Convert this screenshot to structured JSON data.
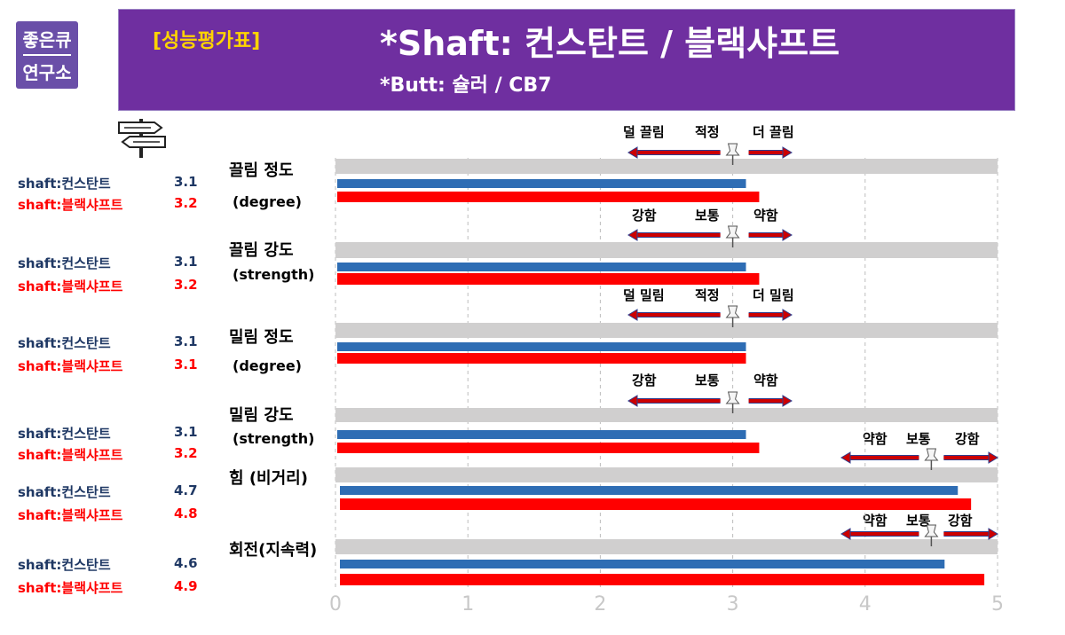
{
  "logo": {
    "line1": "좋은큐",
    "line2": "연구소"
  },
  "header": {
    "eval_label": "[성능평가표]",
    "shaft_line": "*Shaft: 컨스탄트 / 블랙샤프트",
    "butt_line": "*Butt: 슐러 / CB7"
  },
  "icons": {
    "signpost": "signpost-icon",
    "pin": "push-pin-icon",
    "arrow_left": "arrow-left-icon",
    "arrow_right": "arrow-right-icon"
  },
  "colors": {
    "banner": "#6f2fa0",
    "eval_label": "#ffd400",
    "series_blue": "#2e6db4",
    "series_red": "#ff0000",
    "track": "#d0cfcf",
    "legend_dark": "#1f3864"
  },
  "legend": [
    {
      "a_name": "shaft:컨스탄트",
      "a_value": "3.1",
      "b_name": "shaft:블랙샤프트",
      "b_value": "3.2"
    },
    {
      "a_name": "shaft:컨스탄트",
      "a_value": "3.1",
      "b_name": "shaft:블랙샤프트",
      "b_value": "3.2"
    },
    {
      "a_name": "shaft:컨스탄트",
      "a_value": "3.1",
      "b_name": "shaft:블랙샤프트",
      "b_value": "3.1"
    },
    {
      "a_name": "shaft:컨스탄트",
      "a_value": "3.1",
      "b_name": "shaft:블랙샤프트",
      "b_value": "3.2"
    },
    {
      "a_name": "shaft:컨스탄트",
      "a_value": "4.7",
      "b_name": "shaft:블랙샤프트",
      "b_value": "4.8"
    },
    {
      "a_name": "shaft:컨스탄트",
      "a_value": "4.6",
      "b_name": "shaft:블랙샤프트",
      "b_value": "4.9"
    }
  ],
  "scales": [
    {
      "left": "덜 끌림",
      "mid": "적정",
      "right": "더 끌림"
    },
    {
      "left": "강함",
      "mid": "보통",
      "right": "약함"
    },
    {
      "left": "덜 밀림",
      "mid": "적정",
      "right": "더 밀림"
    },
    {
      "left": "강함",
      "mid": "보통",
      "right": "약함"
    },
    {
      "left": "약함",
      "mid": "보통",
      "right": "강함"
    },
    {
      "left": "약함",
      "mid": "보통",
      "right": "강함"
    }
  ],
  "chart_data": {
    "type": "bar",
    "orientation": "horizontal",
    "categories": [
      {
        "name": "끌림 정도",
        "sub": "(degree)"
      },
      {
        "name": "끌림 강도",
        "sub": "(strength)"
      },
      {
        "name": "밀림 정도",
        "sub": "(degree)"
      },
      {
        "name": "밀림 강도",
        "sub": "(strength)"
      },
      {
        "name": "힘 (비거리)",
        "sub": ""
      },
      {
        "name": "회전(지속력)",
        "sub": ""
      }
    ],
    "series": [
      {
        "name": "shaft:컨스탄트",
        "color": "#2e6db4",
        "values": [
          3.1,
          3.1,
          3.1,
          3.1,
          4.7,
          4.6
        ]
      },
      {
        "name": "shaft:블랙샤프트",
        "color": "#ff0000",
        "values": [
          3.2,
          3.2,
          3.1,
          3.2,
          4.8,
          4.9
        ]
      }
    ],
    "reference_marker_values": [
      3,
      3,
      3,
      3,
      4.5,
      4.5
    ],
    "xlim": [
      0,
      5
    ],
    "xticks": [
      "0",
      "1",
      "2",
      "3",
      "4",
      "5"
    ],
    "grid": "vertical dashed",
    "title": "",
    "xlabel": "",
    "ylabel": ""
  }
}
